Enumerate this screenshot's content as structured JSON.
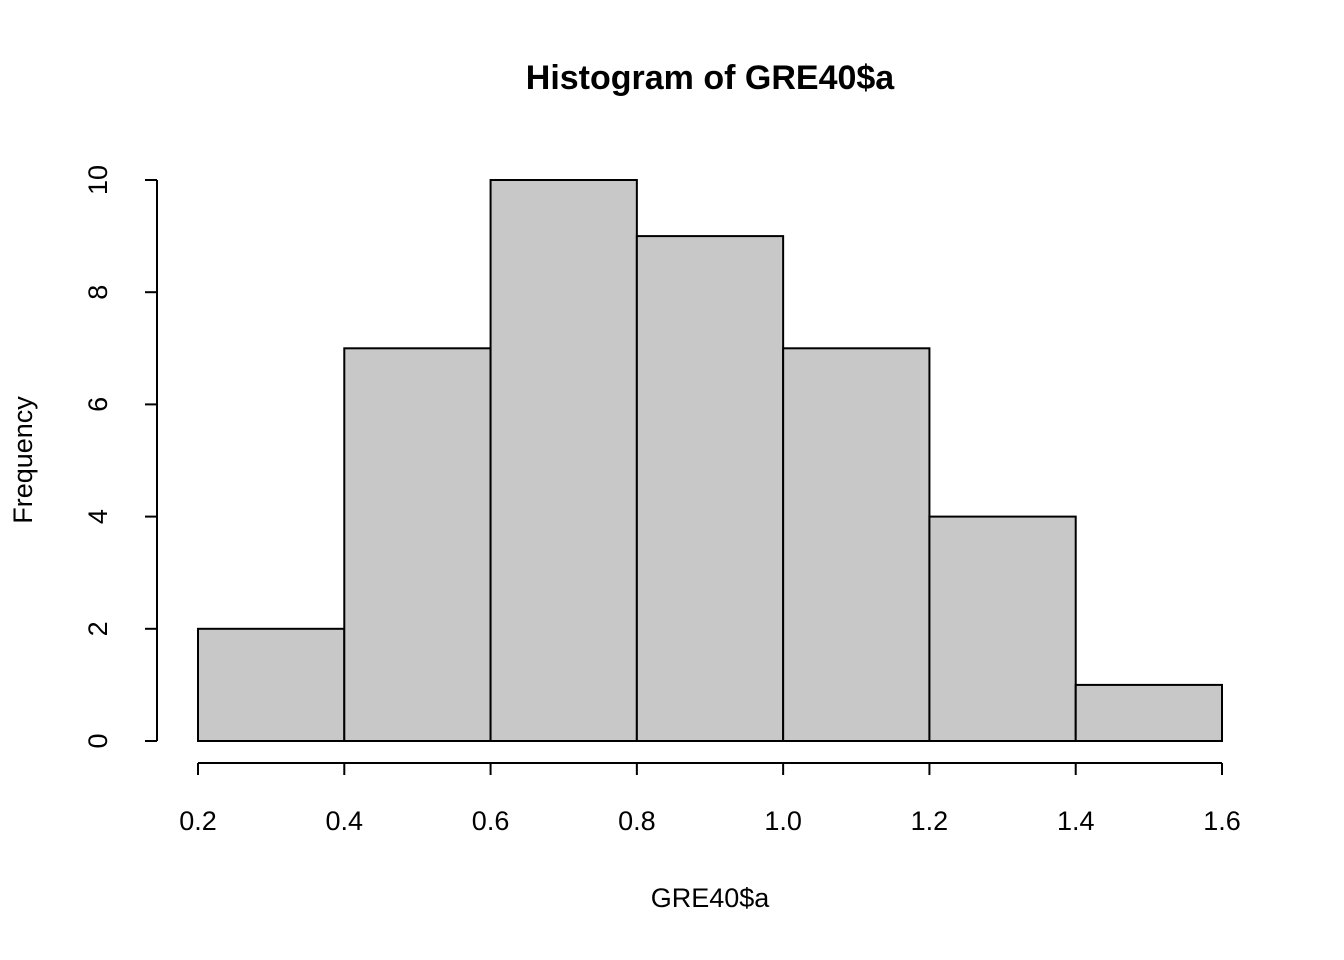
{
  "chart_data": {
    "type": "histogram",
    "title": "Histogram of GRE40$a",
    "x_label": "GRE40$a",
    "y_label": "Frequency",
    "bins": [
      0.2,
      0.4,
      0.6,
      0.8,
      1.0,
      1.2,
      1.4,
      1.6
    ],
    "values": [
      2,
      7,
      10,
      9,
      7,
      4,
      1
    ],
    "color": "#c8c8c8",
    "xlim": [
      0.2,
      1.6
    ],
    "xticks": [
      0.2,
      0.4,
      0.6,
      0.8,
      {
        "value": 1,
        "label": "1.0"
      },
      1.2,
      1.4,
      1.6
    ],
    "ylim": [
      0,
      10
    ],
    "yticks": [
      0,
      2,
      4,
      6,
      8,
      10
    ]
  }
}
